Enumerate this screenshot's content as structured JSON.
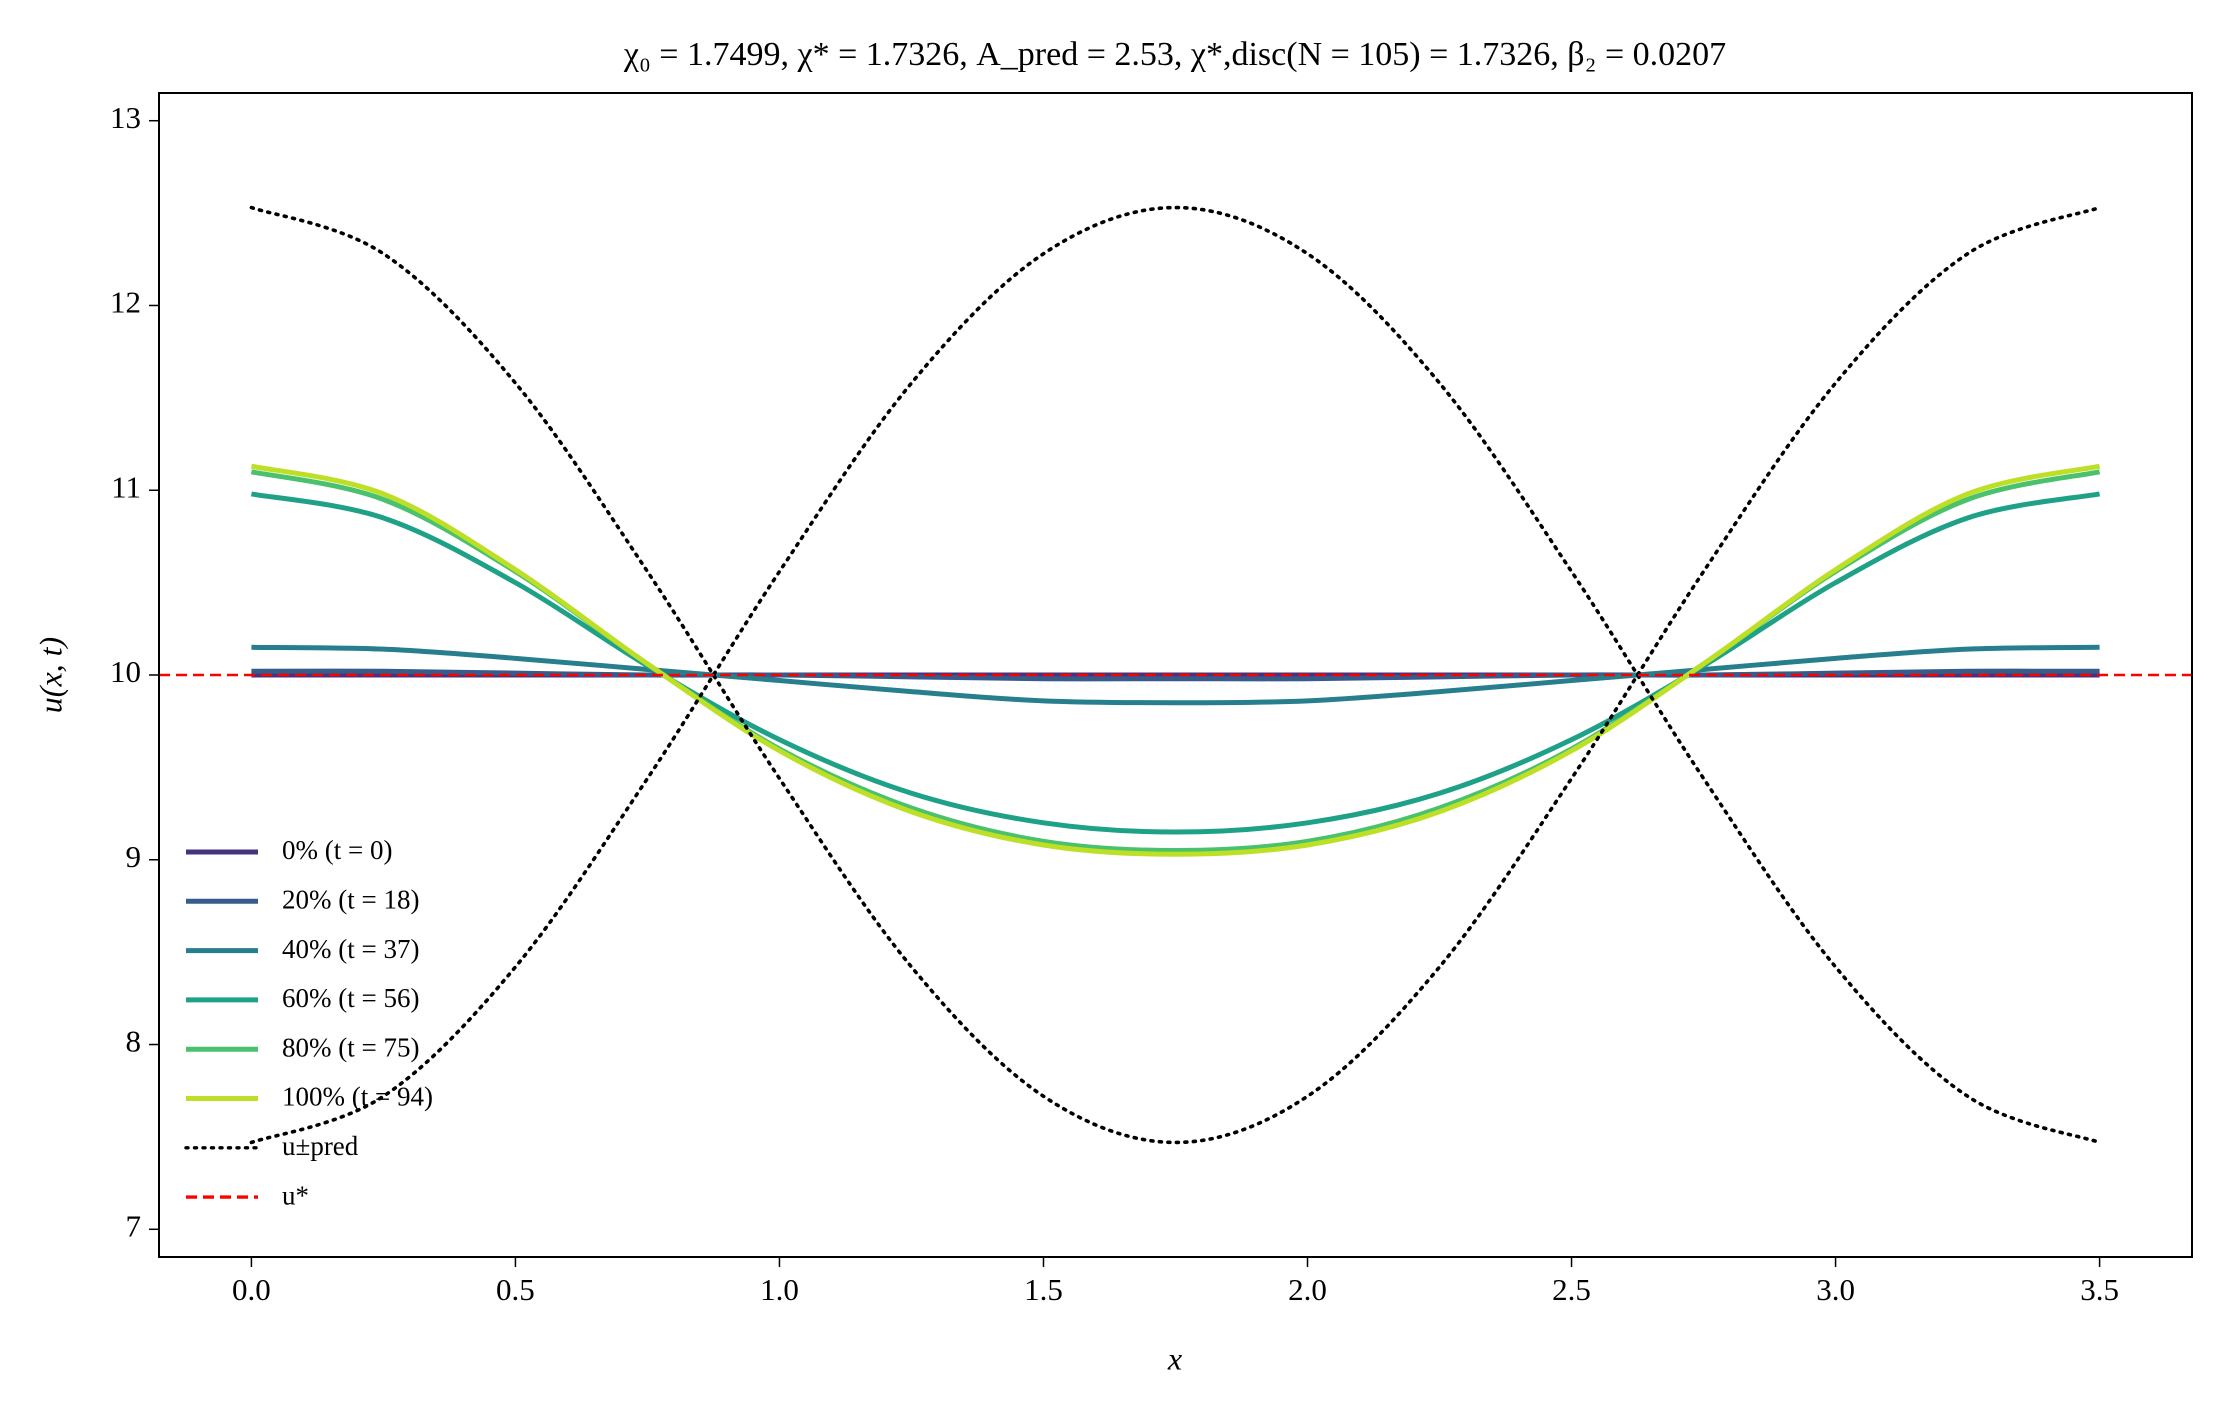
{
  "chart_data": {
    "type": "line",
    "title": "χ₀ = 1.7499,  χ* = 1.7326,  A_pred = 2.53,  χ*,disc(N = 105) = 1.7326,  β₂ = 0.0207",
    "x_label": "x",
    "y_label": "u(x, t)",
    "x": [
      0,
      0.25,
      0.5,
      0.75,
      1,
      1.25,
      1.5,
      1.75,
      2,
      2.25,
      2.5,
      2.75,
      3,
      3.25,
      3.5
    ],
    "series": [
      {
        "name": "0% (t = 0)",
        "color": "#46327e",
        "style": "solid",
        "values": [
          10,
          10,
          10,
          10,
          10,
          10,
          10,
          10,
          10,
          10,
          10,
          10,
          10,
          10,
          10
        ]
      },
      {
        "name": "20% (t = 18)",
        "color": "#365c8d",
        "style": "solid",
        "values": [
          10.02,
          10.02,
          10.01,
          10.0,
          10.0,
          9.99,
          9.98,
          9.98,
          9.98,
          9.99,
          10.0,
          10.0,
          10.01,
          10.02,
          10.02
        ]
      },
      {
        "name": "40% (t = 37)",
        "color": "#277f8e",
        "style": "solid",
        "values": [
          10.15,
          10.14,
          10.09,
          10.03,
          9.97,
          9.91,
          9.86,
          9.85,
          9.86,
          9.91,
          9.97,
          10.03,
          10.09,
          10.14,
          10.15
        ]
      },
      {
        "name": "60% (t = 56)",
        "color": "#1fa187",
        "style": "solid",
        "values": [
          10.98,
          10.85,
          10.5,
          10.05,
          9.65,
          9.36,
          9.2,
          9.15,
          9.2,
          9.36,
          9.65,
          10.05,
          10.5,
          10.85,
          10.98
        ]
      },
      {
        "name": "80% (t = 75)",
        "color": "#4ac16d",
        "style": "solid",
        "values": [
          11.1,
          10.95,
          10.56,
          10.06,
          9.6,
          9.28,
          9.1,
          9.05,
          9.1,
          9.28,
          9.6,
          10.06,
          10.56,
          10.95,
          11.1
        ]
      },
      {
        "name": "100% (t = 94)",
        "color": "#bddf26",
        "style": "solid",
        "values": [
          11.13,
          10.98,
          10.57,
          10.06,
          9.59,
          9.26,
          9.08,
          9.03,
          9.08,
          9.26,
          9.59,
          10.06,
          10.57,
          10.98,
          11.13
        ]
      },
      {
        "name": "u±pred",
        "color": "#000000",
        "style": "dotted",
        "values": [
          12.53,
          12.28,
          11.58,
          10.56,
          9.44,
          8.42,
          7.72,
          7.47,
          7.72,
          8.42,
          9.44,
          10.56,
          11.58,
          12.28,
          12.53
        ],
        "lower": [
          7.47,
          7.72,
          8.42,
          9.44,
          10.56,
          11.58,
          12.28,
          12.53,
          12.28,
          11.58,
          10.56,
          9.44,
          8.42,
          7.72,
          7.47
        ]
      }
    ],
    "hline": {
      "name": "u*",
      "value": 10,
      "color": "#ff0000",
      "style": "dashed"
    },
    "xlim": [
      -0.175,
      3.675
    ],
    "ylim": [
      6.85,
      13.15
    ],
    "xticks": [
      {
        "value": 0,
        "label": "0.0"
      },
      0.5,
      {
        "value": 1,
        "label": "1.0"
      },
      1.5,
      {
        "value": 2,
        "label": "2.0"
      },
      2.5,
      {
        "value": 3,
        "label": "3.0"
      },
      3.5
    ],
    "yticks": [
      7,
      8,
      9,
      10,
      11,
      12,
      13
    ],
    "grid": false,
    "legend_position": "lower left"
  }
}
